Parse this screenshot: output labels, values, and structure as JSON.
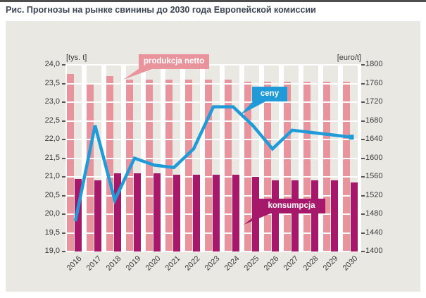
{
  "page": {
    "title": "Рис. Прогнозы на рынке свинины до 2030 года Европейской комиссии"
  },
  "chart_data": {
    "type": "bar",
    "title": "Рис. Прогнозы на рынке свинины до 2030 года Европейской комиссии",
    "categories": [
      "2016",
      "2017",
      "2018",
      "2019",
      "2020",
      "2021",
      "2022",
      "2023",
      "2024",
      "2025",
      "2026",
      "2027",
      "2028",
      "2029",
      "2030"
    ],
    "series": [
      {
        "name": "produkcja netto",
        "type": "bar",
        "axis": "left",
        "color": "#e9949d",
        "values": [
          23.75,
          23.5,
          23.7,
          23.6,
          23.6,
          23.6,
          23.6,
          23.6,
          23.6,
          23.55,
          23.55,
          23.55,
          23.55,
          23.55,
          23.55
        ]
      },
      {
        "name": "konsumpcja",
        "type": "bar",
        "axis": "left",
        "color": "#a6196a",
        "values": [
          20.95,
          20.9,
          21.1,
          21.1,
          21.1,
          21.05,
          21.05,
          21.05,
          21.05,
          21.0,
          20.9,
          20.9,
          20.9,
          20.9,
          20.85
        ]
      },
      {
        "name": "ceny",
        "type": "line",
        "axis": "right",
        "color": "#209bd8",
        "values": [
          1465,
          1670,
          1510,
          1600,
          1585,
          1580,
          1620,
          1710,
          1710,
          1670,
          1620,
          1660,
          1655,
          1650,
          1645
        ]
      }
    ],
    "left_axis": {
      "unit_label": "[tys. t]",
      "min": 19.0,
      "max": 24.0,
      "step": 0.5,
      "tick_labels": [
        "24,0",
        "23,5",
        "23,0",
        "22,5",
        "22,0",
        "21,5",
        "21,0",
        "20,5",
        "20,0",
        "19,5",
        "19,0"
      ]
    },
    "right_axis": {
      "unit_label": "[euro/t]",
      "min": 1400,
      "max": 1800,
      "step": 40,
      "tick_labels": [
        "1800",
        "1760",
        "1720",
        "1680",
        "1640",
        "1600",
        "1560",
        "1520",
        "1480",
        "1440",
        "1400"
      ]
    },
    "grid": true,
    "legend_position": "callouts"
  },
  "callouts": {
    "produkcja": {
      "text": "produkcja netto",
      "color": "#e9949d"
    },
    "ceny": {
      "text": "ceny",
      "color": "#209bd8"
    },
    "konsumpcja": {
      "text": "konsumpcja",
      "color": "#a6196a"
    }
  },
  "colors": {
    "panel_background": "#e9e8e2",
    "gridline": "#ffffff",
    "axis_text": "#3a3a3a",
    "title_text": "#3c4653",
    "top_border": "#4e4e4e",
    "tick_mark": "#555555"
  }
}
